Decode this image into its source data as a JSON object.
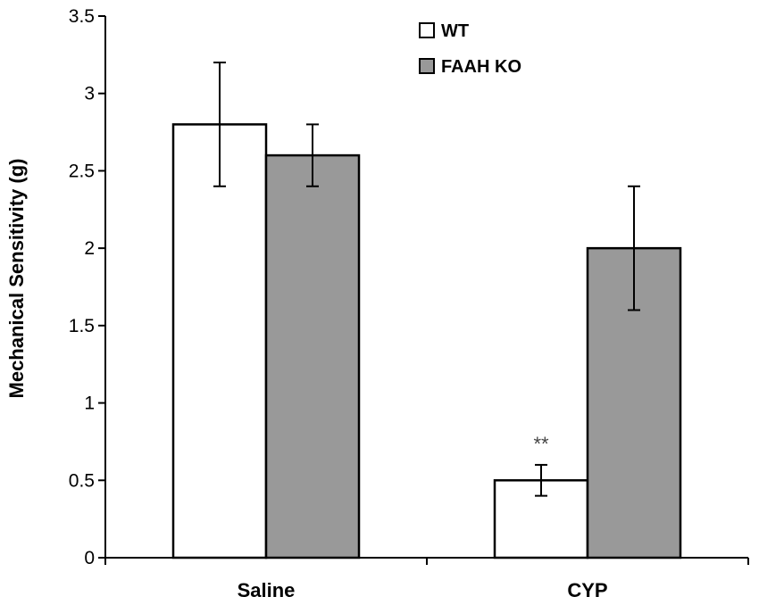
{
  "chart_data": {
    "type": "bar",
    "categories": [
      "Saline",
      "CYP"
    ],
    "series": [
      {
        "name": "WT",
        "values": [
          2.8,
          0.5
        ],
        "errors": [
          0.4,
          0.1
        ],
        "color": "#ffffff"
      },
      {
        "name": "FAAH KO",
        "values": [
          2.6,
          2.0
        ],
        "errors": [
          0.2,
          0.4
        ],
        "color": "#999999"
      }
    ],
    "xlabel": "",
    "ylabel": "Mechanical Sensitivity (g)",
    "ylim": [
      0,
      3.5
    ],
    "yticks": [
      "0",
      "0.5",
      "1",
      "1.5",
      "2",
      "2.5",
      "3",
      "3.5"
    ],
    "legend_position": "top-right",
    "grid": false,
    "annotations": [
      {
        "text": "**",
        "category": "CYP",
        "series": "WT"
      }
    ]
  }
}
